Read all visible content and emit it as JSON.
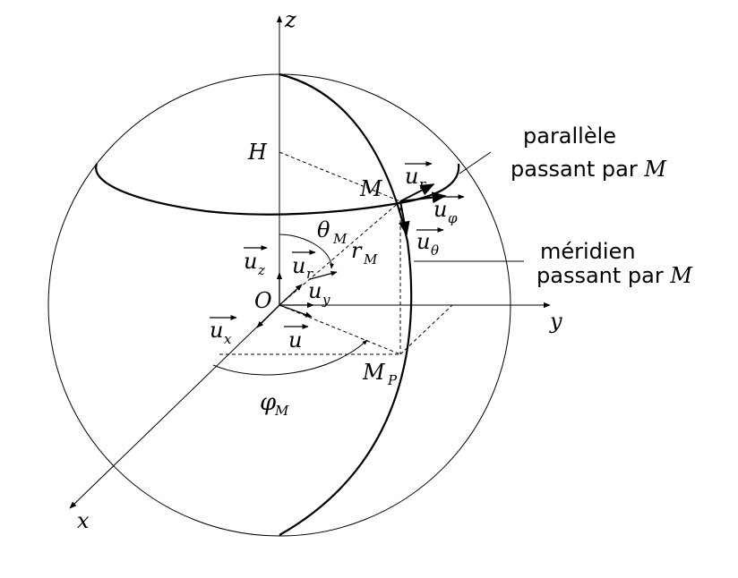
{
  "axes": {
    "z": "z",
    "y": "y",
    "x": "x"
  },
  "points": {
    "origin": "O",
    "H": "H",
    "M": "M",
    "MP": "M",
    "MP_sub": "P"
  },
  "vectors": {
    "u_z": {
      "base": "u",
      "sub": "z"
    },
    "u_r_small": {
      "base": "u",
      "sub": "r"
    },
    "u_y": {
      "base": "u",
      "sub": "y"
    },
    "u_x": {
      "base": "u",
      "sub": "x"
    },
    "u": {
      "base": "u",
      "sub": ""
    },
    "u_r": {
      "base": "u",
      "sub": "r"
    },
    "u_phi": {
      "base": "u",
      "sub": "φ"
    },
    "u_theta": {
      "base": "u",
      "sub": "θ"
    }
  },
  "angles": {
    "theta": {
      "base": "θ",
      "sub": "M"
    },
    "phi": {
      "base": "φ",
      "sub": "M"
    },
    "r": {
      "base": "r",
      "sub": "M"
    }
  },
  "labels": {
    "parallel_line1": "parallèle",
    "parallel_line2": "passant par ",
    "parallel_M": "M",
    "meridian_line1": "méridien",
    "meridian_line2": "passant par ",
    "meridian_M": "M"
  }
}
